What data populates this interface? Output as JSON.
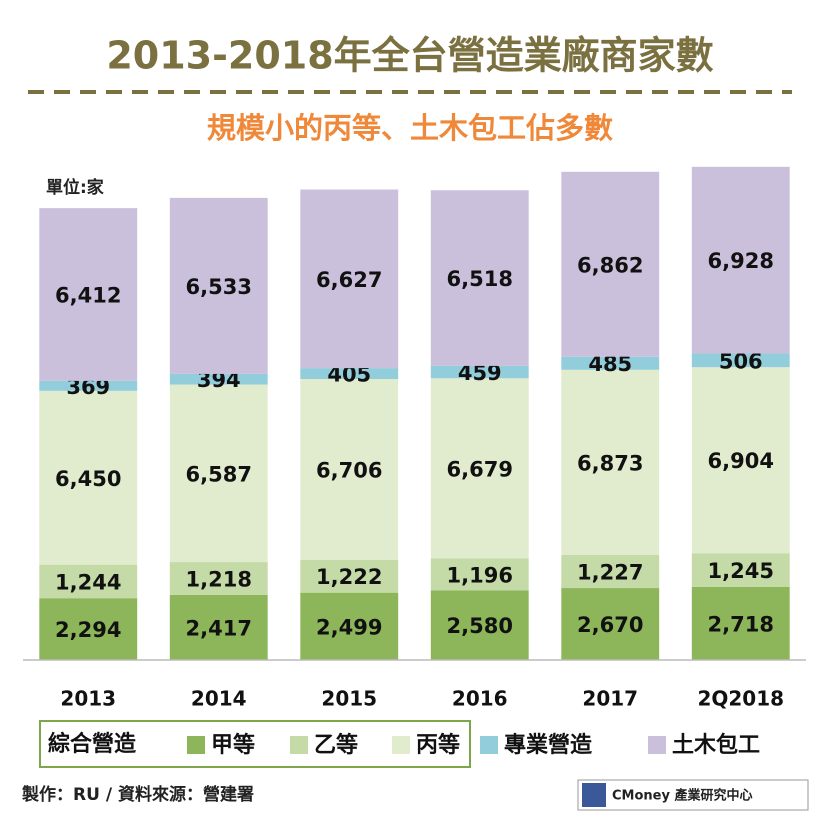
{
  "chart_data": {
    "type": "stacked_bar",
    "title": "2013-2018年全台營造業廠商家數",
    "subtitle": "規模小的丙等、土木包工佔多數",
    "unit_label": "單位:家",
    "categories": [
      "2013",
      "2014",
      "2015",
      "2016",
      "2017",
      "2Q2018"
    ],
    "legend_group": "綜合營造",
    "series": [
      {
        "name": "甲等",
        "color": "#8db55a",
        "values": [
          2294,
          2417,
          2499,
          2580,
          2670,
          2718
        ],
        "value_labels": [
          "2,294",
          "2,417",
          "2,499",
          "2,580",
          "2,670",
          "2,718"
        ]
      },
      {
        "name": "乙等",
        "color": "#c5dba7",
        "values": [
          1244,
          1218,
          1222,
          1196,
          1227,
          1245
        ],
        "value_labels": [
          "1,244",
          "1,218",
          "1,222",
          "1,196",
          "1,227",
          "1,245"
        ]
      },
      {
        "name": "丙等",
        "color": "#e1ecce",
        "values": [
          6450,
          6587,
          6706,
          6679,
          6873,
          6904
        ],
        "value_labels": [
          "6,450",
          "6,587",
          "6,706",
          "6,679",
          "6,873",
          "6,904"
        ]
      },
      {
        "name": "專業營造",
        "color": "#92cddc",
        "values": [
          369,
          394,
          405,
          459,
          485,
          506
        ],
        "value_labels": [
          "369",
          "394",
          "405",
          "459",
          "485",
          "506"
        ]
      },
      {
        "name": "土木包工",
        "color": "#cbc0dc",
        "values": [
          6412,
          6533,
          6627,
          6518,
          6862,
          6928
        ],
        "value_labels": [
          "6,412",
          "6,533",
          "6,627",
          "6,518",
          "6,862",
          "6,928"
        ]
      }
    ],
    "ylim": [
      0,
      19000
    ],
    "footer": "製作：RU  / 資料來源：營建署",
    "logo": "CMoney 產業研究中心"
  }
}
